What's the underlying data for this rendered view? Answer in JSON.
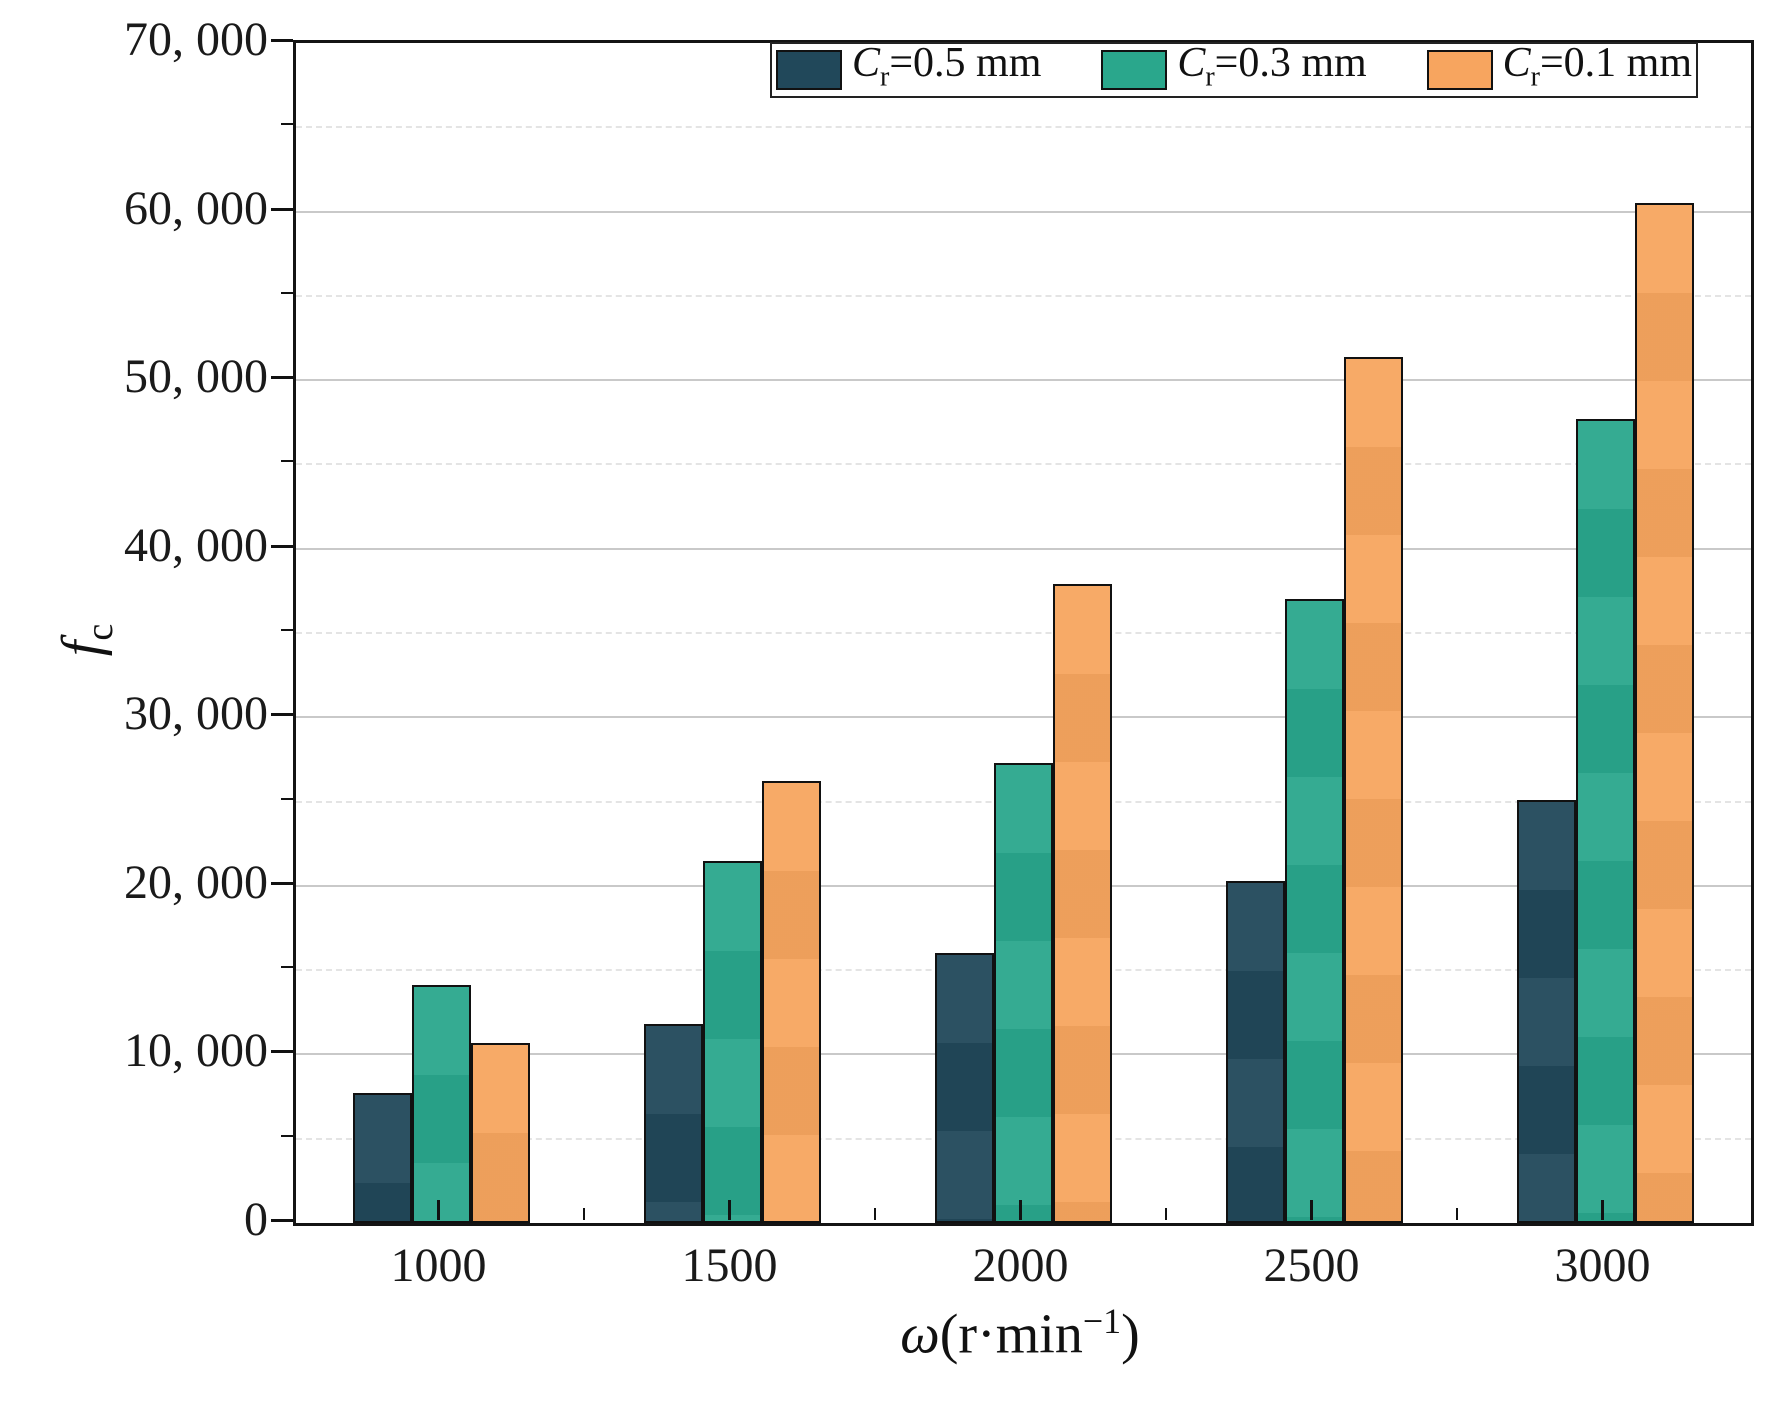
{
  "chart_data": {
    "type": "bar",
    "title": "",
    "categories": [
      "1000",
      "1500",
      "2000",
      "2500",
      "3000"
    ],
    "series": [
      {
        "name_main": "C",
        "name_sub": "r",
        "name_rest": "=0.5 mm",
        "color": "#21485a",
        "values": [
          7700,
          11800,
          16000,
          20300,
          25100
        ]
      },
      {
        "name_main": "C",
        "name_sub": "r",
        "name_rest": "=0.3 mm",
        "color": "#2aa78c",
        "values": [
          14100,
          21500,
          27300,
          37000,
          47700
        ]
      },
      {
        "name_main": "C",
        "name_sub": "r",
        "name_rest": "=0.1 mm",
        "color": "#f7a55f",
        "values": [
          10700,
          26200,
          37900,
          51400,
          60500
        ]
      }
    ],
    "xlabel": {
      "prefix": "ω",
      "body": "(r·min",
      "sup": "−1",
      "suffix": ")"
    },
    "ylabel": {
      "main": "f",
      "sub": "c"
    },
    "ylim": [
      0,
      70000
    ],
    "y_major_step": 10000,
    "y_minor_step": 5000,
    "y_tick_labels": [
      "0",
      "10, 000",
      "20, 000",
      "30, 000",
      "40, 000",
      "50, 000",
      "60, 000",
      "70, 000"
    ],
    "legend_position": "top-right",
    "grid": {
      "major": "solid horizontal",
      "minor": "dashed horizontal"
    }
  },
  "style_colors": {
    "axis": "#141414",
    "major_grid": "#c9c9c9",
    "minor_grid": "#e4e4e4",
    "background": "#ffffff"
  }
}
